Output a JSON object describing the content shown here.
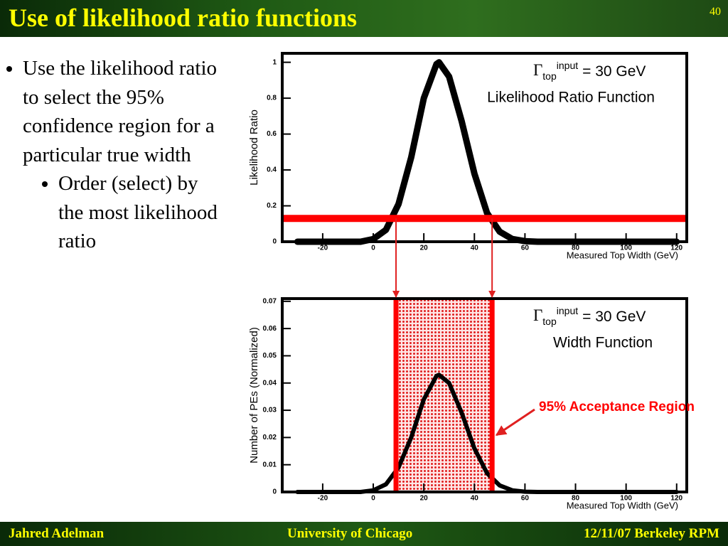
{
  "header": {
    "title": "Use of likelihood ratio functions",
    "page": "40"
  },
  "bullets": [
    "Use the likelihood ratio to select the 95% confidence region for a particular true width"
  ],
  "sub_bullets": [
    "Order (select) by the most likelihood ratio"
  ],
  "footer": {
    "left": "Jahred Adelman",
    "center": "University of Chicago",
    "right": "12/11/07 Berkeley RPM"
  },
  "chart_data": [
    {
      "type": "line",
      "title": "Likelihood Ratio Function",
      "annotation": {
        "symbol": "Γ",
        "sub": "top",
        "sup": "input",
        "text": "= 30 GeV"
      },
      "xlabel": "Measured Top Width (GeV)",
      "ylabel": "Likelihood Ratio",
      "x": [
        -30,
        -25,
        -20,
        -15,
        -10,
        -5,
        0,
        5,
        10,
        15,
        20,
        25,
        26,
        30,
        35,
        40,
        45,
        50,
        55,
        60,
        65,
        70,
        80,
        90,
        100,
        110,
        120
      ],
      "values": [
        0,
        0,
        0,
        0,
        0,
        0,
        0.015,
        0.066,
        0.21,
        0.47,
        0.8,
        0.99,
        1,
        0.92,
        0.67,
        0.38,
        0.16,
        0.056,
        0.015,
        0.003,
        0,
        0,
        0,
        0,
        0,
        0,
        0
      ],
      "color": "#000000",
      "threshold": 0.13,
      "threshold_color": "#ff0000",
      "xlim": [
        -36,
        124
      ],
      "xticks": [
        -20,
        0,
        20,
        40,
        60,
        80,
        100,
        120
      ],
      "ylim": [
        0,
        1.05
      ],
      "yticks": [
        0,
        0.2,
        0.4,
        0.6,
        0.8,
        1
      ]
    },
    {
      "type": "line",
      "title": "Width Function",
      "annotation": {
        "symbol": "Γ",
        "sub": "top",
        "sup": "input",
        "text": "= 30 GeV"
      },
      "xlabel": "Measured Top Width (GeV)",
      "ylabel": "Number of PEs (Normalized)",
      "x": [
        -30,
        -25,
        -20,
        -15,
        -10,
        -5,
        0,
        5,
        10,
        15,
        20,
        25,
        26,
        30,
        35,
        40,
        45,
        50,
        55,
        60,
        65,
        70,
        80,
        90,
        100,
        110,
        120
      ],
      "values": [
        0,
        0,
        0,
        0,
        0,
        0,
        0.0006,
        0.0028,
        0.009,
        0.02,
        0.034,
        0.0426,
        0.043,
        0.04,
        0.029,
        0.016,
        0.0069,
        0.0024,
        0.0006,
        0.0001,
        0,
        0,
        0,
        0,
        0,
        0,
        0
      ],
      "color": "#000000",
      "region": [
        9,
        47
      ],
      "region_color": "#ff0000",
      "callout": "95% Acceptance Region",
      "xlim": [
        -36,
        124
      ],
      "xticks": [
        -20,
        0,
        20,
        40,
        60,
        80,
        100,
        120
      ],
      "ylim": [
        0,
        0.071
      ],
      "yticks": [
        0,
        0.01,
        0.02,
        0.03,
        0.04,
        0.05,
        0.06,
        0.07
      ]
    }
  ]
}
